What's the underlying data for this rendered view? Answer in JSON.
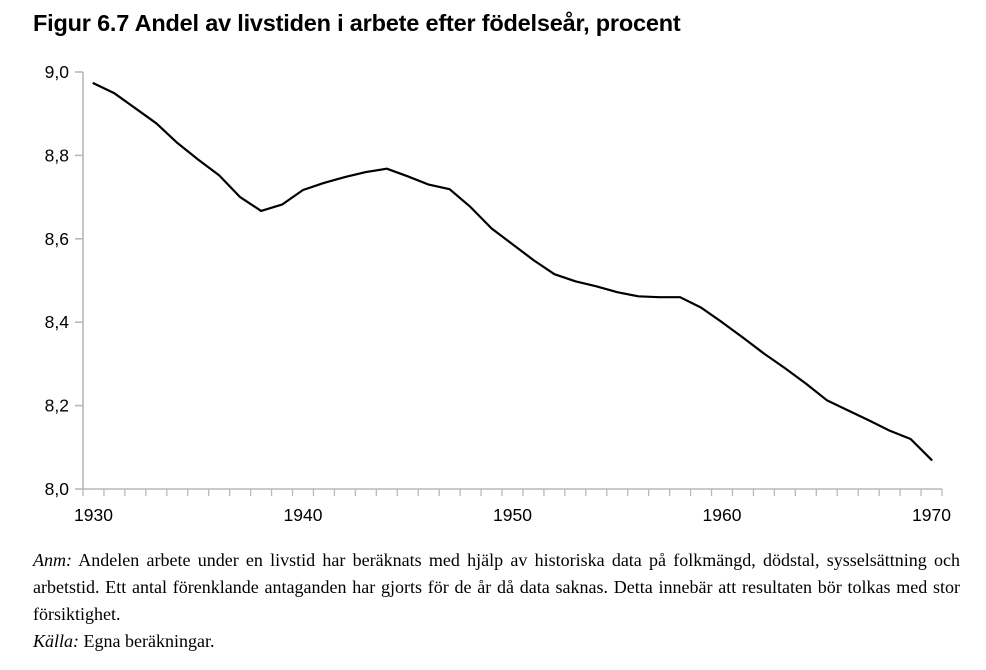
{
  "title": "Figur 6.7 Andel av livstiden i arbete efter födelseår, procent",
  "notes": {
    "anm_label": "Anm:",
    "anm_text": "Andelen arbete under en livstid har beräknats med hjälp av historiska data på folkmängd, dödstal, sysselsättning och arbetstid. Ett antal förenklande antaganden har gjorts för de år då data saknas. Detta innebär att resultaten bör tolkas med stor försiktighet.",
    "source_label": "Källa:",
    "source_text": "Egna beräkningar."
  },
  "colors": {
    "line": "#000000",
    "axis": "#b8b8b8",
    "text": "#000000",
    "background": "#ffffff"
  },
  "chart_data": {
    "type": "line",
    "title": "Figur 6.7 Andel av livstiden i arbete efter födelseår, procent",
    "xlabel": "",
    "ylabel": "",
    "x": [
      1930,
      1931,
      1932,
      1933,
      1934,
      1935,
      1936,
      1937,
      1938,
      1939,
      1940,
      1941,
      1942,
      1943,
      1944,
      1945,
      1946,
      1947,
      1948,
      1949,
      1950,
      1951,
      1952,
      1953,
      1954,
      1955,
      1956,
      1957,
      1958,
      1959,
      1960,
      1961,
      1962,
      1963,
      1964,
      1965,
      1966,
      1967,
      1968,
      1969,
      1970
    ],
    "values": [
      8.973,
      8.949,
      8.913,
      8.877,
      8.83,
      8.79,
      8.752,
      8.7,
      8.667,
      8.682,
      8.717,
      8.734,
      8.748,
      8.76,
      8.768,
      8.75,
      8.73,
      8.719,
      8.676,
      8.625,
      8.587,
      8.549,
      8.515,
      8.498,
      8.486,
      8.472,
      8.462,
      8.46,
      8.46,
      8.435,
      8.4,
      8.363,
      8.325,
      8.29,
      8.253,
      8.213,
      8.189,
      8.165,
      8.14,
      8.12,
      8.07
    ],
    "xlim": [
      1930,
      1970
    ],
    "ylim": [
      8.0,
      9.0
    ],
    "grid": false,
    "legend": "none",
    "decimal_separator": ",",
    "yticks": {
      "values": [
        9.0,
        8.8,
        8.6,
        8.4,
        8.2,
        8.0
      ],
      "labels": [
        "9,0",
        "8,8",
        "8,6",
        "8,4",
        "8,2",
        "8,0"
      ]
    },
    "xticks": {
      "values": [
        1930,
        1940,
        1950,
        1960,
        1970
      ],
      "labels": [
        "1930",
        "1940",
        "1950",
        "1960",
        "1970"
      ]
    },
    "minor_xtick_interval_years": 1
  }
}
